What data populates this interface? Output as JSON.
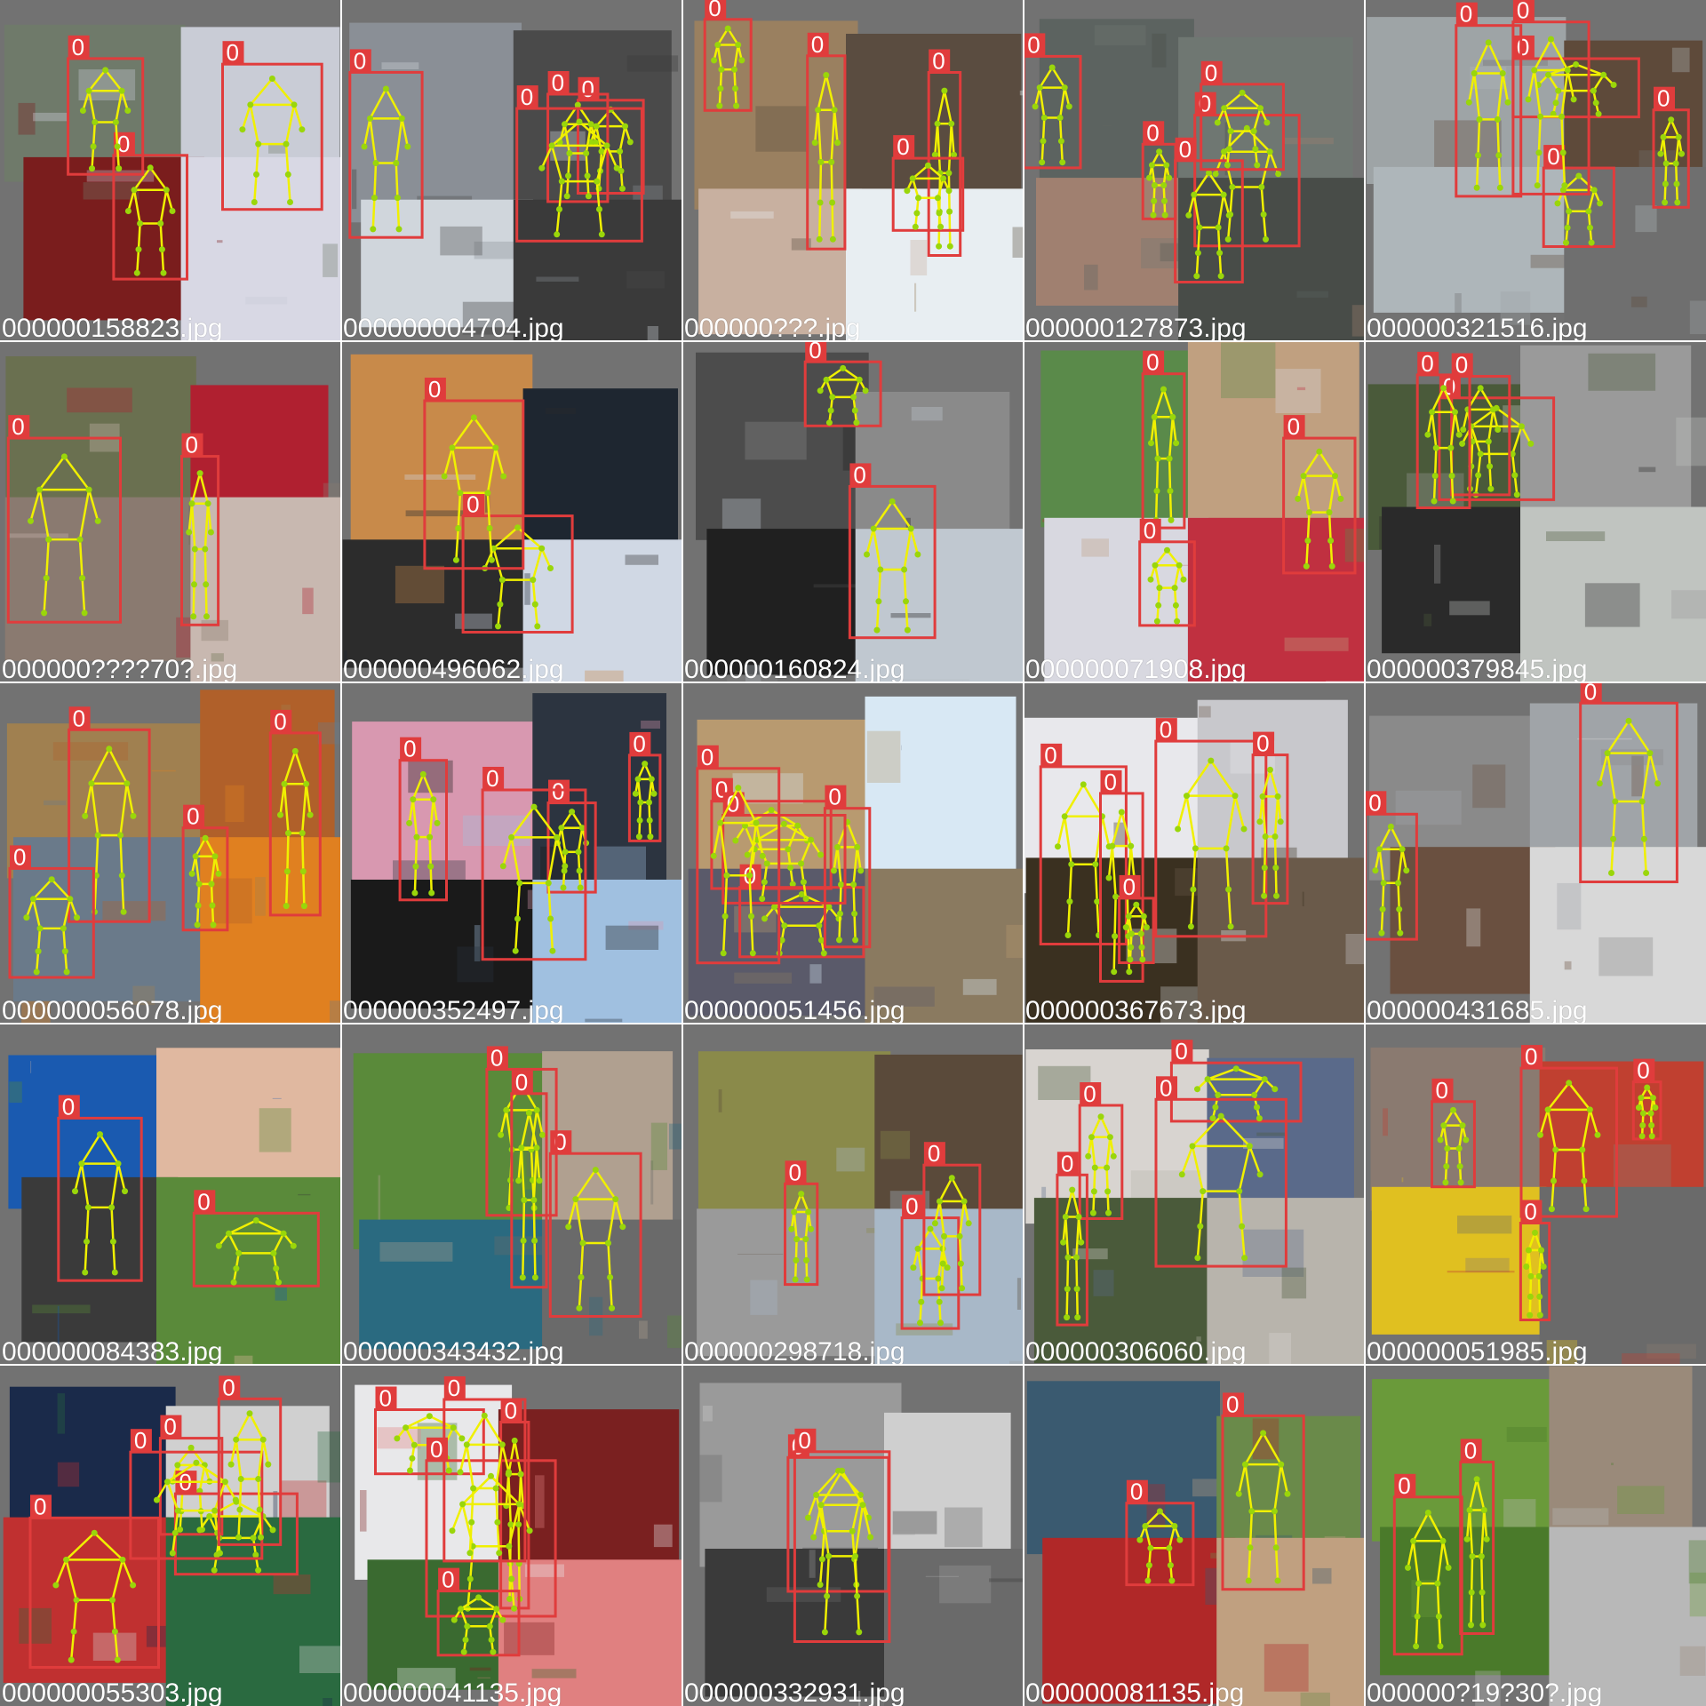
{
  "grid": {
    "columns": 5,
    "rows": 5
  },
  "colors": {
    "background": "#808080",
    "cell_fill": "#727272",
    "box": "#e03c3c",
    "label_bg": "#e03c3c",
    "label_text": "#ffffff",
    "skeleton": "#f0f000",
    "keypoint": "#9ad60a",
    "filename_text": "#ffffff"
  },
  "box_label": "0",
  "cells": [
    {
      "filename": "000000158823.jpg",
      "palette": [
        "#6f7a6a",
        "#c9ccd6",
        "#7a1d1d",
        "#d8d8e4"
      ]
    },
    {
      "filename": "000000004704.jpg",
      "palette": [
        "#8a8f96",
        "#4a4a4a",
        "#d0d6dc",
        "#3a3a3a"
      ]
    },
    {
      "filename": "000000???.jpg",
      "palette": [
        "#9a8060",
        "#5a4c40",
        "#c8b0a0",
        "#e8eef2"
      ]
    },
    {
      "filename": "000000127873.jpg",
      "palette": [
        "#5c6360",
        "#6f7772",
        "#a08070",
        "#484c48"
      ]
    },
    {
      "filename": "000000321516.jpg",
      "palette": [
        "#9ea4a6",
        "#5e4a3a",
        "#aeb6ba",
        "#6f6f6f"
      ]
    },
    {
      "filename": "000000????70?.jpg",
      "palette": [
        "#6a7050",
        "#b02030",
        "#8a7a70",
        "#c8b8b0"
      ]
    },
    {
      "filename": "000000496062.jpg",
      "palette": [
        "#c88a4a",
        "#1e2630",
        "#2c2c2c",
        "#d0d8e4"
      ]
    },
    {
      "filename": "000000160824.jpg",
      "palette": [
        "#4c4c4c",
        "#8a8a8a",
        "#202020",
        "#c0c8d0"
      ]
    },
    {
      "filename": "000000071908.jpg",
      "palette": [
        "#5a8a4a",
        "#c0a080",
        "#d8d8e0",
        "#c03040"
      ]
    },
    {
      "filename": "000000379845.jpg",
      "palette": [
        "#4a5a3a",
        "#9a9a9a",
        "#2a2a2a",
        "#c0c4c0"
      ]
    },
    {
      "filename": "000000056078.jpg",
      "palette": [
        "#a08050",
        "#b0602a",
        "#6a7a8a",
        "#e08020"
      ]
    },
    {
      "filename": "000000352497.jpg",
      "palette": [
        "#d898b0",
        "#2c3440",
        "#1a1a1a",
        "#a0c0e0"
      ]
    },
    {
      "filename": "000000051456.jpg",
      "palette": [
        "#b89a70",
        "#d8e8f4",
        "#5a5a6a",
        "#8a7a60"
      ]
    },
    {
      "filename": "000000367673.jpg",
      "palette": [
        "#e8e8ec",
        "#c8c8cc",
        "#3a3020",
        "#6a5a4a"
      ]
    },
    {
      "filename": "000000431685.jpg",
      "palette": [
        "#8a8a8a",
        "#a0a4a8",
        "#6a5040",
        "#d8d8d8"
      ]
    },
    {
      "filename": "000000084383.jpg",
      "palette": [
        "#1a5ab0",
        "#e0b8a0",
        "#3a3a3a",
        "#5a8a3a"
      ]
    },
    {
      "filename": "000000343432.jpg",
      "palette": [
        "#5a8a3a",
        "#b0a090",
        "#2a6a80",
        "#6a6a6a"
      ]
    },
    {
      "filename": "000000298718.jpg",
      "palette": [
        "#8a8a4a",
        "#5a4a3a",
        "#9a9a9a",
        "#a8b8c8"
      ]
    },
    {
      "filename": "000000306060.jpg",
      "palette": [
        "#d8d4d0",
        "#5a6a8a",
        "#4a5a3a",
        "#b8b4ac"
      ]
    },
    {
      "filename": "000000051985.jpg",
      "palette": [
        "#8a7a70",
        "#c04030",
        "#e0c020",
        "#6a6a6a"
      ]
    },
    {
      "filename": "000000055303.jpg",
      "palette": [
        "#1a2a4a",
        "#d0d0d0",
        "#c03030",
        "#2a6a40"
      ]
    },
    {
      "filename": "000000041135.jpg",
      "palette": [
        "#e8e8ea",
        "#7a2020",
        "#3a6a30",
        "#e08080"
      ]
    },
    {
      "filename": "000000332931.jpg",
      "palette": [
        "#9a9a9a",
        "#cfcfcf",
        "#3a3a3a",
        "#6a6a6a"
      ]
    },
    {
      "filename": "000000081135.jpg",
      "palette": [
        "#3a5a70",
        "#6a8a4a",
        "#b02828",
        "#c0a080"
      ]
    },
    {
      "filename": "000000?19?30?.jpg",
      "palette": [
        "#6a9a3a",
        "#9a8a7a",
        "#4a7a2a",
        "#b8b8b8"
      ]
    }
  ]
}
